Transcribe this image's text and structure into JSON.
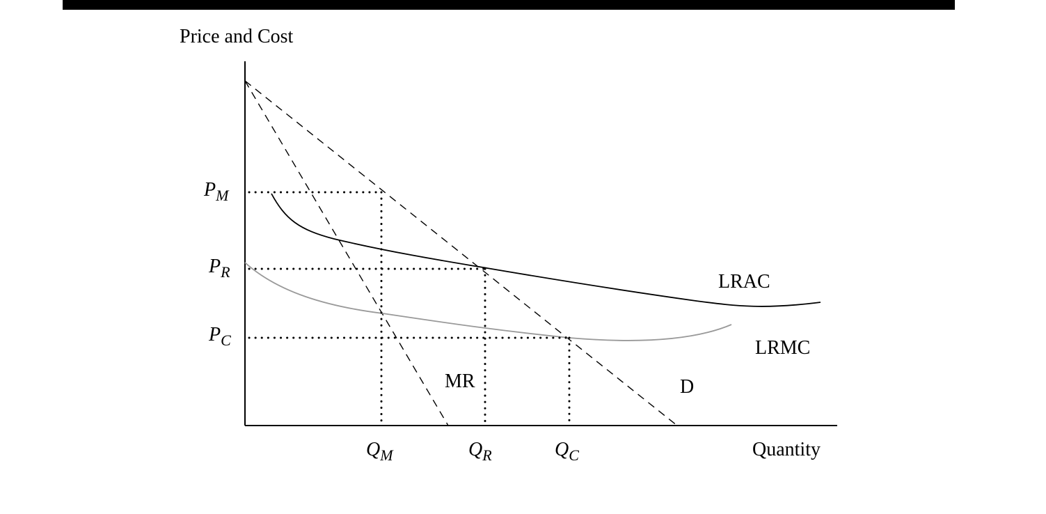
{
  "header_bar": {
    "color": "#000000"
  },
  "diagram": {
    "y_axis_label": "Price and Cost",
    "x_axis_label": "Quantity",
    "price_labels": [
      {
        "letter": "P",
        "sub": "M"
      },
      {
        "letter": "P",
        "sub": "R"
      },
      {
        "letter": "P",
        "sub": "C"
      }
    ],
    "quantity_labels": [
      {
        "letter": "Q",
        "sub": "M"
      },
      {
        "letter": "Q",
        "sub": "R"
      },
      {
        "letter": "Q",
        "sub": "C"
      }
    ],
    "curve_labels": {
      "lrac": "LRAC",
      "lrmc": "LRMC",
      "mr": "MR",
      "demand": "D"
    },
    "colors": {
      "axis": "#000000",
      "lrac": "#000000",
      "lrmc": "#999999",
      "dashed": "#000000",
      "dotted": "#000000"
    }
  }
}
